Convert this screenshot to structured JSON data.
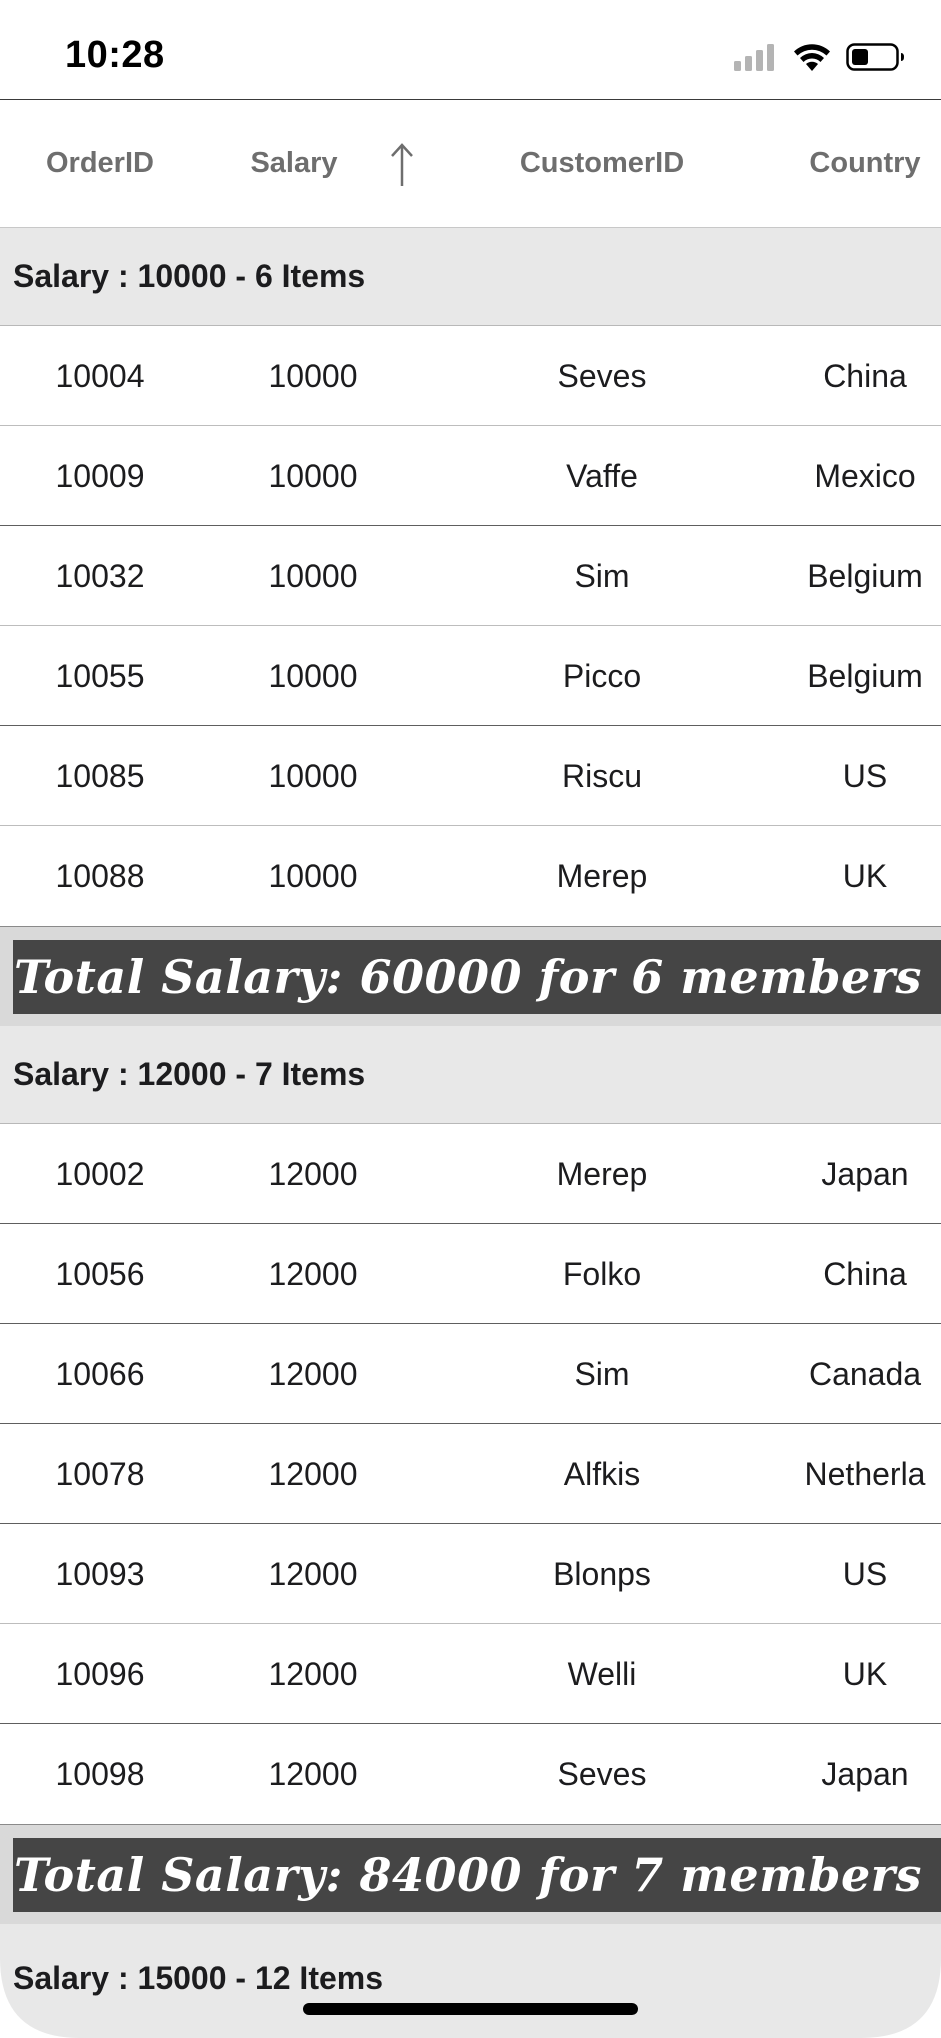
{
  "status_bar": {
    "time": "10:28"
  },
  "columns": {
    "order_id": "OrderID",
    "salary": "Salary",
    "customer_id": "CustomerID",
    "country": "Country"
  },
  "sort": {
    "column": "Salary",
    "direction": "ascending",
    "icon": "arrow-up-icon"
  },
  "groups": [
    {
      "caption": "Salary : 10000 - 6 Items",
      "rows": [
        {
          "order_id": "10004",
          "salary": "10000",
          "customer_id": "Seves",
          "country": "China"
        },
        {
          "order_id": "10009",
          "salary": "10000",
          "customer_id": "Vaffe",
          "country": "Mexico"
        },
        {
          "order_id": "10032",
          "salary": "10000",
          "customer_id": "Sim",
          "country": "Belgium"
        },
        {
          "order_id": "10055",
          "salary": "10000",
          "customer_id": "Picco",
          "country": "Belgium"
        },
        {
          "order_id": "10085",
          "salary": "10000",
          "customer_id": "Riscu",
          "country": "US"
        },
        {
          "order_id": "10088",
          "salary": "10000",
          "customer_id": "Merep",
          "country": "UK"
        }
      ],
      "summary": "Total Salary: 60000 for 6 members"
    },
    {
      "caption": "Salary : 12000 - 7 Items",
      "rows": [
        {
          "order_id": "10002",
          "salary": "12000",
          "customer_id": "Merep",
          "country": "Japan"
        },
        {
          "order_id": "10056",
          "salary": "12000",
          "customer_id": "Folko",
          "country": "China"
        },
        {
          "order_id": "10066",
          "salary": "12000",
          "customer_id": "Sim",
          "country": "Canada"
        },
        {
          "order_id": "10078",
          "salary": "12000",
          "customer_id": "Alfkis",
          "country": "Netherla"
        },
        {
          "order_id": "10093",
          "salary": "12000",
          "customer_id": "Blonps",
          "country": "US"
        },
        {
          "order_id": "10096",
          "salary": "12000",
          "customer_id": "Welli",
          "country": "UK"
        },
        {
          "order_id": "10098",
          "salary": "12000",
          "customer_id": "Seves",
          "country": "Japan"
        }
      ],
      "summary": "Total Salary: 84000 for 7 members"
    },
    {
      "caption": "Salary : 15000 - 12 Items",
      "rows": [],
      "summary": ""
    }
  ],
  "icons": {
    "signal": "cellular-signal-icon",
    "wifi": "wifi-icon",
    "battery": "battery-icon"
  }
}
